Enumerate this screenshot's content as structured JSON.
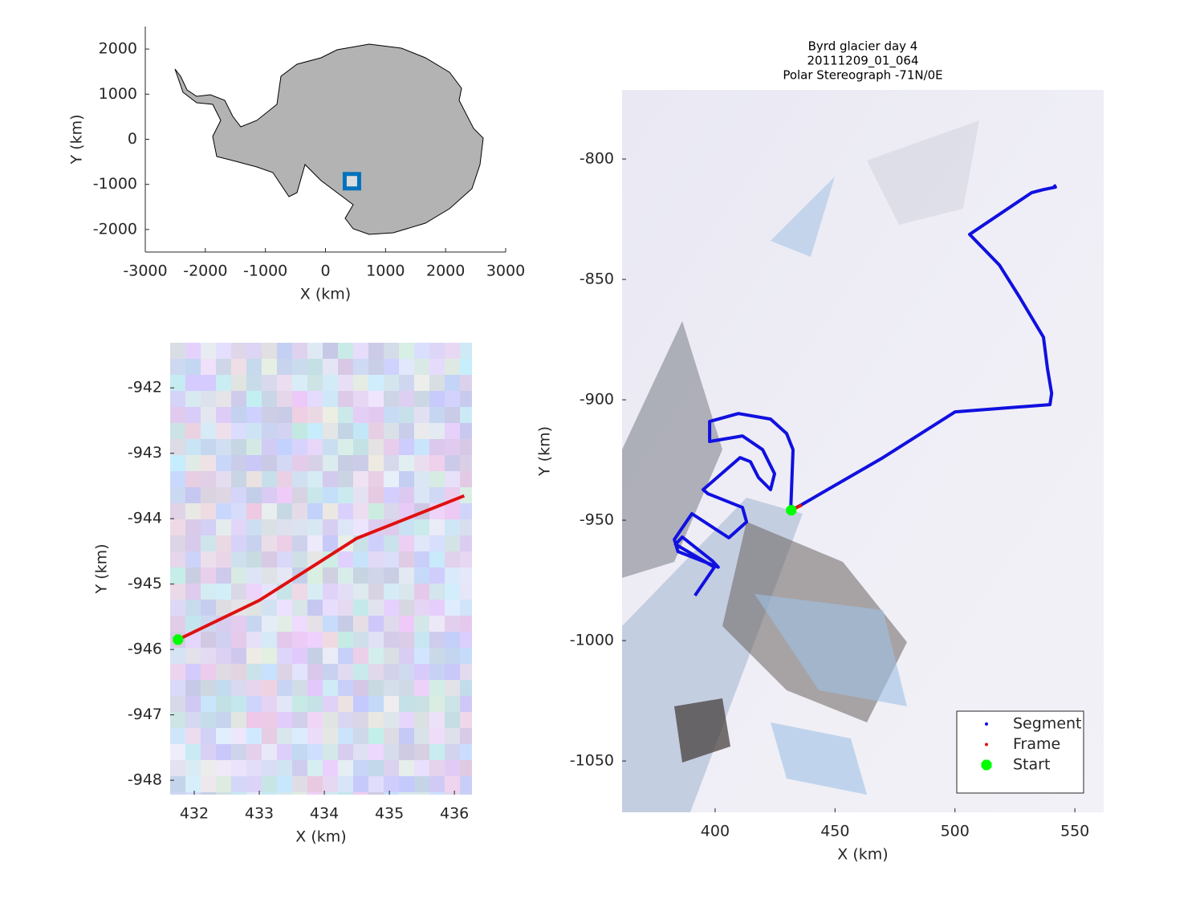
{
  "chart_data": [
    {
      "type": "scatter",
      "xlabel": "X (km)",
      "ylabel": "Y (km)",
      "xlim": [
        -3000,
        3000
      ],
      "ylim": [
        -2500,
        2500
      ],
      "xticks": [
        -3000,
        -2000,
        -1000,
        0,
        1000,
        2000,
        3000
      ],
      "yticks": [
        -2000,
        -1000,
        0,
        1000,
        2000
      ],
      "series": [
        {
          "color": "#0072bd",
          "mode": "marker",
          "marker": "square",
          "x": [
            440
          ],
          "values": [
            -930
          ]
        }
      ]
    },
    {
      "type": "line",
      "xlabel": "X (km)",
      "ylabel": "Y (km)",
      "xlim": [
        431.63,
        436.27
      ],
      "ylim": [
        -948.22,
        -941.31
      ],
      "xticks": [
        432,
        433,
        434,
        435,
        436
      ],
      "yticks": [
        -942,
        -943,
        -944,
        -945,
        -946,
        -947,
        -948
      ],
      "series": [
        {
          "color": "#e01010",
          "mode": "line",
          "x": [
            431.75,
            433,
            434.5,
            436.15
          ],
          "values": [
            -945.85,
            -945.25,
            -944.3,
            -943.65
          ]
        },
        {
          "color": "#00ff00",
          "mode": "marker",
          "marker": "octagon",
          "x": [
            431.75
          ],
          "values": [
            -945.85
          ]
        }
      ]
    },
    {
      "type": "line",
      "title": [
        "Byrd glacier day 4",
        "20111209_01_064",
        "Polar Stereograph -71N/0E"
      ],
      "xlabel": "X (km)",
      "ylabel": "Y (km)",
      "xlim": [
        361.2,
        562.0
      ],
      "ylim": [
        -1071.3,
        -771.3
      ],
      "xticks": [
        400,
        450,
        500,
        550
      ],
      "yticks": [
        -800,
        -850,
        -900,
        -950,
        -1000,
        -1050
      ],
      "legend": "southeast",
      "series": [
        {
          "name": "Segment",
          "color": "#1010e0",
          "mode": "line",
          "x": [
            391.6,
            399.7,
            383.5,
            386.3,
            399,
            401.3,
            384.5,
            383,
            390.3,
            405.7,
            413.1,
            411.4,
            397,
            395,
            410.4,
            414.7,
            418.1,
            423.1,
            424.8,
            419.8,
            411.4,
            397.7,
            397.7,
            409.7,
            423.1,
            429.8,
            432.5,
            431.5,
            436.5,
            470,
            500.1,
            539.6,
            540.3,
            538.6,
            536.9,
            526.9,
            518.5,
            506.1,
            508.5,
            531.9,
            536.9,
            541.9,
            541.3
          ],
          "values": [
            -981.3,
            -969.5,
            -960,
            -957,
            -967,
            -969.5,
            -963,
            -958,
            -947.3,
            -957.3,
            -950.7,
            -944.7,
            -939,
            -937.3,
            -924,
            -925.7,
            -932.3,
            -937.3,
            -930.7,
            -920.7,
            -915,
            -917.3,
            -909,
            -905.7,
            -908,
            -914,
            -920.7,
            -946,
            -943.3,
            -924,
            -905,
            -902,
            -897.3,
            -887.3,
            -874,
            -857.3,
            -844,
            -831.3,
            -829.7,
            -814,
            -812.7,
            -811.7,
            -810.7
          ]
        },
        {
          "name": "Frame",
          "color": "#e01010",
          "mode": "line",
          "x": [
            431.75,
            436.15
          ],
          "values": [
            -945.85,
            -943.65
          ]
        },
        {
          "name": "Start",
          "color": "#00ff00",
          "mode": "marker",
          "marker": "octagon",
          "x": [
            431.75
          ],
          "values": [
            -945.85
          ]
        }
      ]
    }
  ]
}
